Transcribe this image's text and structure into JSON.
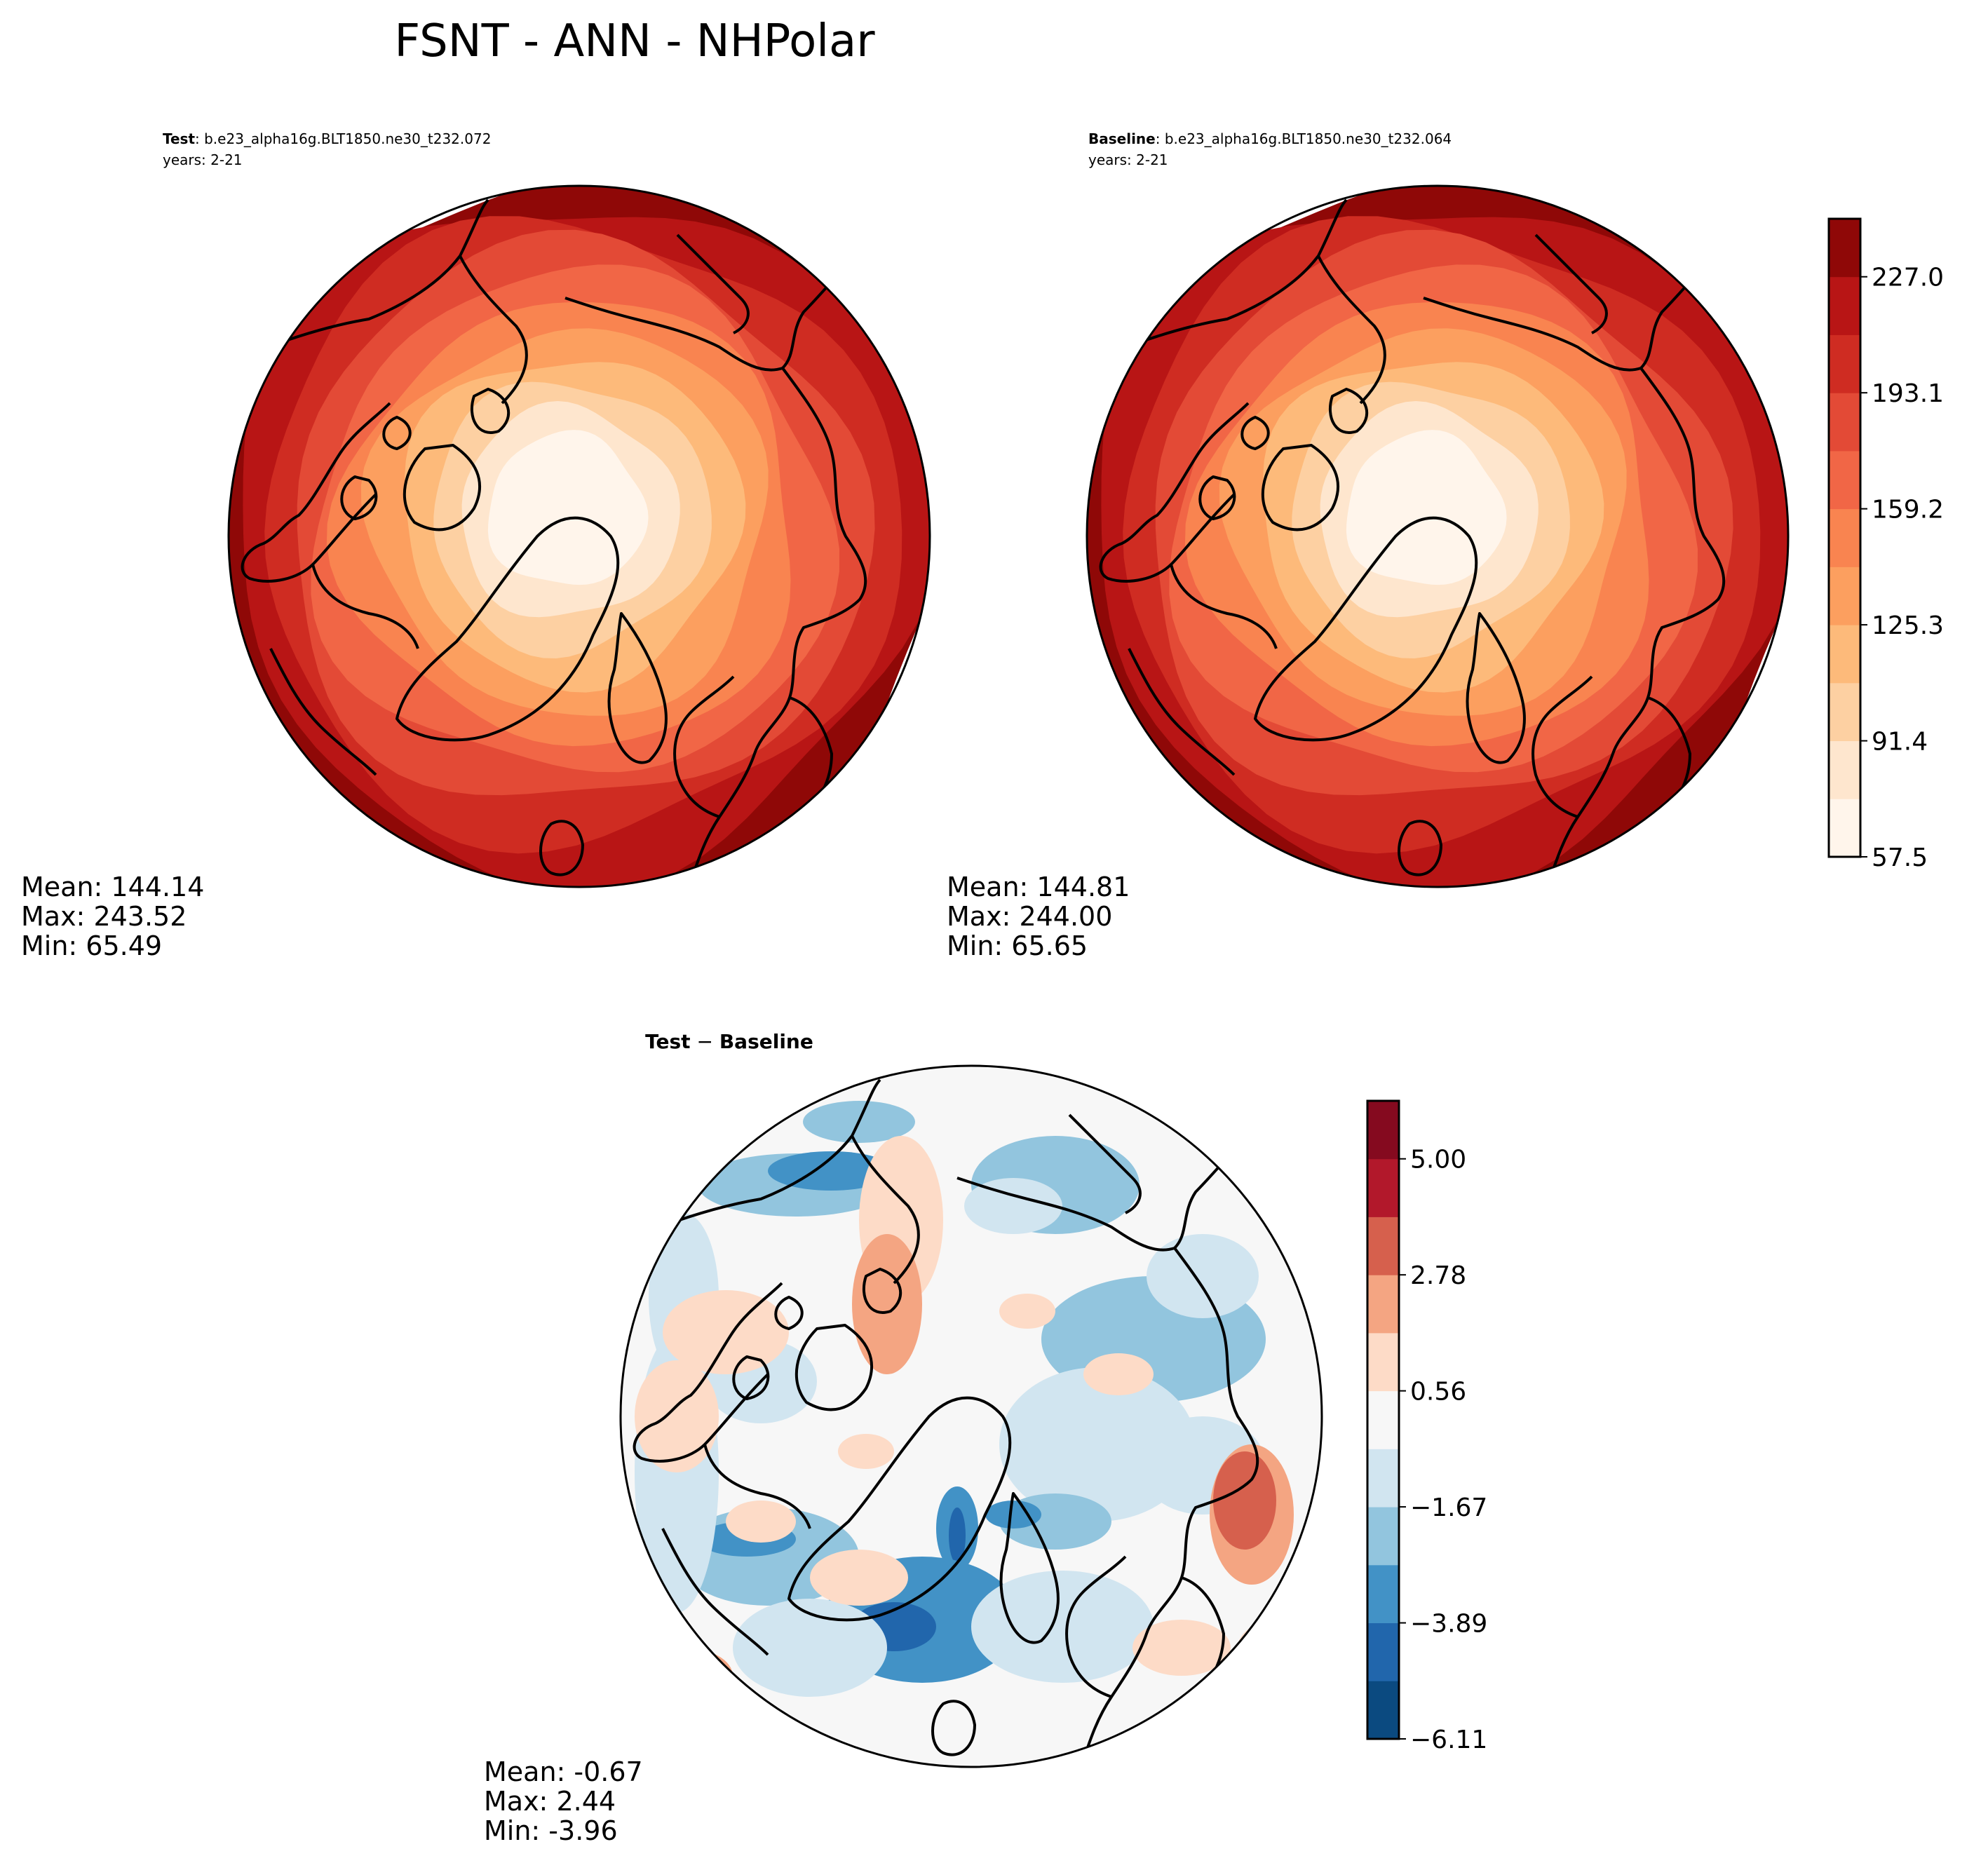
{
  "title": "FSNT - ANN - NHPolar",
  "colors": {
    "main_levels": [
      "#fff5eb",
      "#fee6ce",
      "#fdd0a2",
      "#fdba7a",
      "#fc9f5f",
      "#f98450",
      "#f16646",
      "#e34a36",
      "#cf2c22",
      "#b81515",
      "#8f0807"
    ],
    "diff_levels": [
      "#0b4a80",
      "#2166ac",
      "#4292c6",
      "#92c5de",
      "#d1e5f0",
      "#f7f7f7",
      "#fddbc7",
      "#f4a582",
      "#d6604d",
      "#b2182b",
      "#850a1f"
    ],
    "coast": "#000000"
  },
  "chart_data": [
    {
      "type": "heatmap",
      "label_bold": "Test",
      "label_rest": ": b.e23_alpha16g.BLT1850.ne30_t232.072",
      "years": "years: 2-21",
      "projection": "north-polar-stereographic",
      "stats": {
        "mean": "Mean: 144.14",
        "max": "Max: 243.52",
        "min": "Min: 65.49"
      }
    },
    {
      "type": "heatmap",
      "label_bold": "Baseline",
      "label_rest": ": b.e23_alpha16g.BLT1850.ne30_t232.064",
      "years": "years: 2-21",
      "projection": "north-polar-stereographic",
      "stats": {
        "mean": "Mean: 144.81",
        "max": "Max: 244.00",
        "min": "Min: 65.65"
      },
      "colorbar": {
        "ticks": [
          "57.5",
          "91.4",
          "125.3",
          "159.2",
          "193.1",
          "227.0"
        ],
        "range": [
          57.5,
          250.0
        ]
      }
    },
    {
      "type": "heatmap",
      "label_bold": "Test",
      "label_rest": " − ",
      "label_bold2": "Baseline",
      "projection": "north-polar-stereographic",
      "stats": {
        "mean": "Mean: -0.67",
        "max": "Max:  2.44",
        "min": "Min: -3.96"
      },
      "colorbar": {
        "ticks": [
          "−6.11",
          "−3.89",
          "−1.67",
          "0.56",
          "2.78",
          "5.00"
        ],
        "range": [
          -6.11,
          6.11
        ]
      }
    }
  ]
}
